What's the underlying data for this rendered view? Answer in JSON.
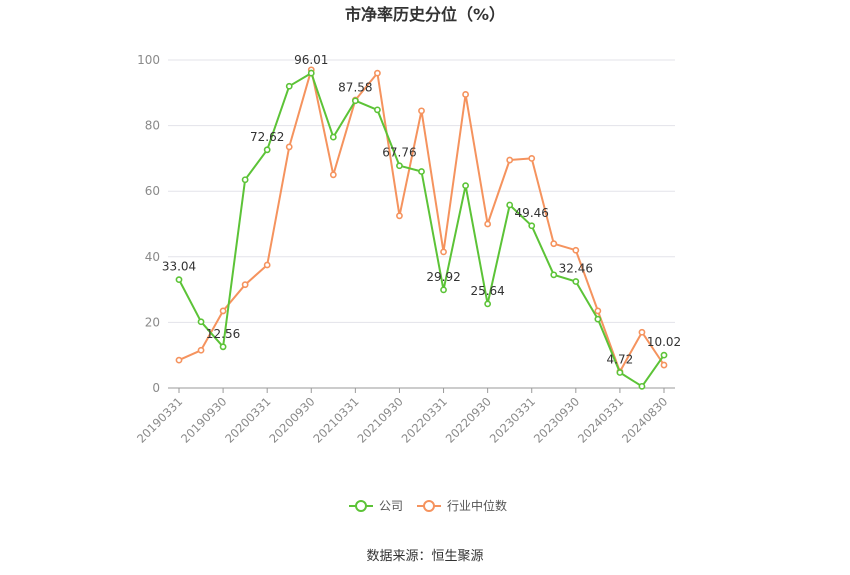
{
  "chart_data": {
    "type": "line",
    "title": "市净率历史分位（%）",
    "source": "数据来源：恒生聚源",
    "ylim": [
      0,
      100
    ],
    "yticks": [
      0,
      20,
      40,
      60,
      80,
      100
    ],
    "grid": true,
    "legend_position": "bottom",
    "x": [
      "20190331",
      "20190630",
      "20190930",
      "20191231",
      "20200331",
      "20200630",
      "20200930",
      "20201231",
      "20210331",
      "20210630",
      "20210930",
      "20211231",
      "20220331",
      "20220630",
      "20220930",
      "20221231",
      "20230331",
      "20230630",
      "20230930",
      "20231231",
      "20240331",
      "20240630",
      "20240830"
    ],
    "x_tick_labels": [
      "20190331",
      "20190930",
      "20200331",
      "20200930",
      "20210331",
      "20210930",
      "20220331",
      "20220930",
      "20230331",
      "20230930",
      "20240331",
      "20240830"
    ],
    "series": [
      {
        "name": "公司",
        "color": "#5cc337",
        "values": [
          33.04,
          20.2,
          12.56,
          63.5,
          72.62,
          92.0,
          96.01,
          76.5,
          87.58,
          84.8,
          67.76,
          66.0,
          29.92,
          61.7,
          25.64,
          55.8,
          49.46,
          34.5,
          32.46,
          21.0,
          4.72,
          0.5,
          10.02
        ]
      },
      {
        "name": "行业中位数",
        "color": "#f5935e",
        "values": [
          8.5,
          11.5,
          23.5,
          31.5,
          37.5,
          73.5,
          97.0,
          65.0,
          87.8,
          96.0,
          52.5,
          84.5,
          41.5,
          89.5,
          50.0,
          69.5,
          70.0,
          44.0,
          42.0,
          23.5,
          5.0,
          17.0,
          7.0
        ]
      }
    ],
    "data_labels": [
      {
        "index": 0,
        "text": "33.04"
      },
      {
        "index": 2,
        "text": "12.56"
      },
      {
        "index": 4,
        "text": "72.62"
      },
      {
        "index": 6,
        "text": "96.01"
      },
      {
        "index": 8,
        "text": "87.58"
      },
      {
        "index": 10,
        "text": "67.76"
      },
      {
        "index": 12,
        "text": "29.92"
      },
      {
        "index": 14,
        "text": "25.64"
      },
      {
        "index": 16,
        "text": "49.46"
      },
      {
        "index": 18,
        "text": "32.46"
      },
      {
        "index": 20,
        "text": "4.72"
      },
      {
        "index": 22,
        "text": "10.02"
      }
    ]
  }
}
